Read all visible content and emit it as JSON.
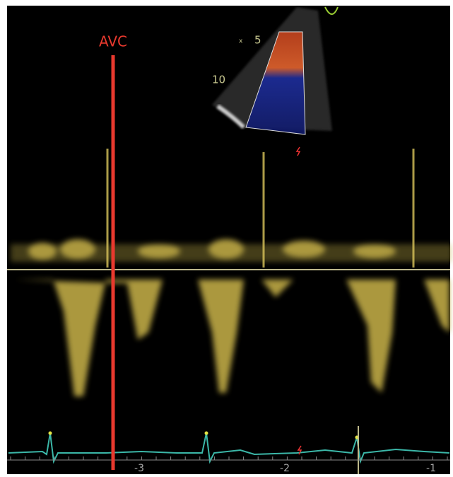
{
  "marker": "AVC",
  "depth_labels": [
    "5",
    "10"
  ],
  "time_axis": [
    "-3",
    "-2",
    "-1"
  ]
}
